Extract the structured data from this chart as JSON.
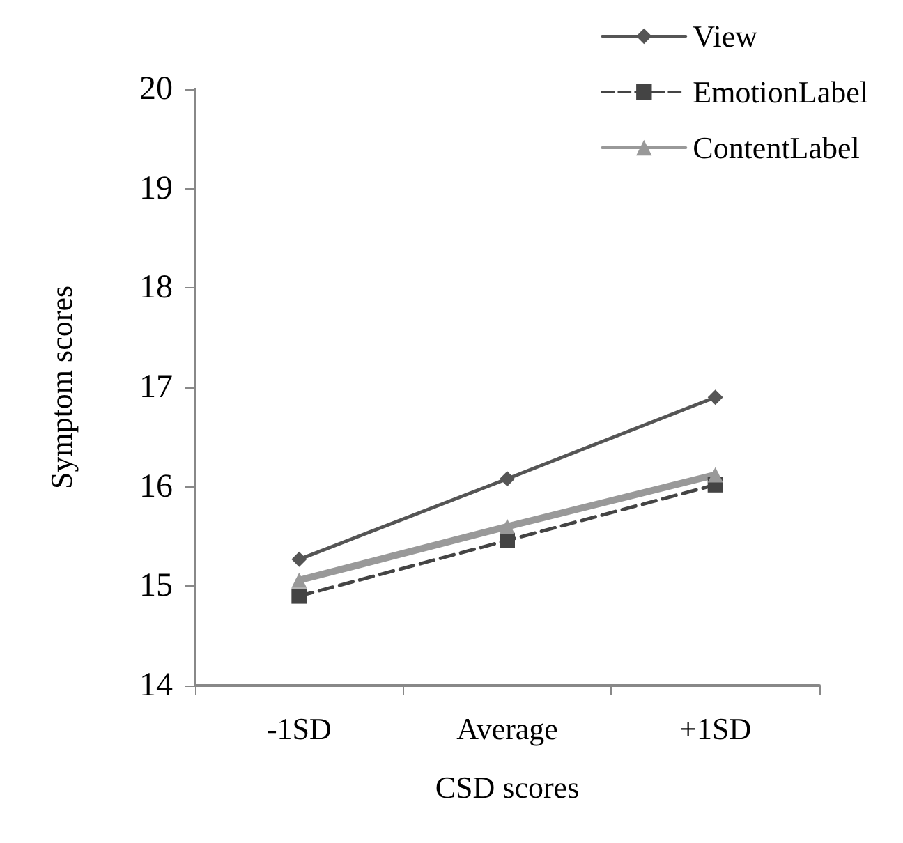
{
  "chart_data": {
    "type": "line",
    "xlabel": "CSD scores",
    "ylabel": "Symptom scores",
    "categories": [
      "-1SD",
      "Average",
      "+1SD"
    ],
    "series": [
      {
        "name": "View",
        "color": "#555555",
        "marker": "diamond",
        "line_style": "solid",
        "values": [
          15.27,
          16.08,
          16.9
        ]
      },
      {
        "name": "EmotionLabel",
        "color": "#444444",
        "marker": "square",
        "line_style": "dashed",
        "values": [
          14.9,
          15.46,
          16.02
        ]
      },
      {
        "name": "ContentLabel",
        "color": "#999999",
        "marker": "triangle",
        "line_style": "solid",
        "values": [
          15.06,
          15.6,
          16.12
        ]
      }
    ],
    "ylim": [
      14,
      20
    ],
    "yticks": [
      14,
      15,
      16,
      17,
      18,
      19,
      20
    ],
    "grid": false,
    "legend": "top right"
  }
}
